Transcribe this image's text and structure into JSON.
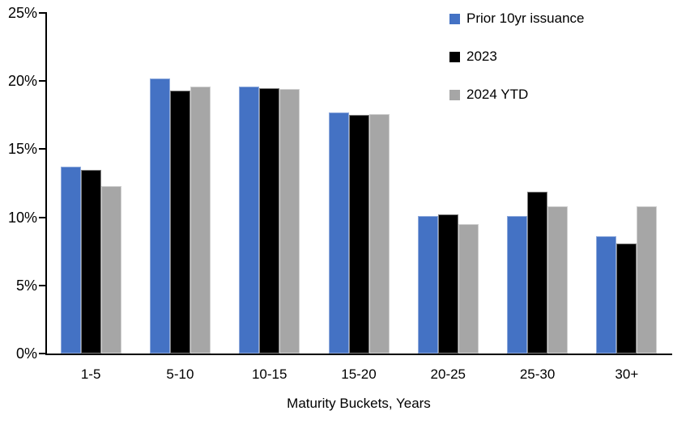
{
  "chart_data": {
    "type": "bar",
    "title": "",
    "xlabel": "Maturity Buckets, Years",
    "ylabel": "",
    "categories": [
      "1-5",
      "5-10",
      "10-15",
      "15-20",
      "20-25",
      "25-30",
      "30+"
    ],
    "series": [
      {
        "name": "Prior 10yr issuance",
        "color": "#4472C4",
        "border_color": "#8FAADC",
        "values": [
          13.7,
          20.2,
          19.6,
          17.7,
          10.1,
          10.1,
          8.6
        ]
      },
      {
        "name": "2023",
        "color": "#000000",
        "border_color": "#7F7F7F",
        "values": [
          13.5,
          19.3,
          19.5,
          17.5,
          10.2,
          11.9,
          8.1
        ]
      },
      {
        "name": "2024 YTD",
        "color": "#A6A6A6",
        "border_color": "#D0D0D0",
        "values": [
          12.3,
          19.6,
          19.4,
          17.6,
          9.5,
          10.8,
          10.8
        ]
      }
    ],
    "y_ticks": [
      "0%",
      "5%",
      "10%",
      "15%",
      "20%",
      "25%"
    ],
    "y_tick_values": [
      0,
      5,
      10,
      15,
      20,
      25
    ],
    "ylim": [
      0,
      25
    ],
    "grid": false,
    "legend_position": "top-right",
    "axis_color": "#000000",
    "background_color": "#FFFFFF"
  }
}
